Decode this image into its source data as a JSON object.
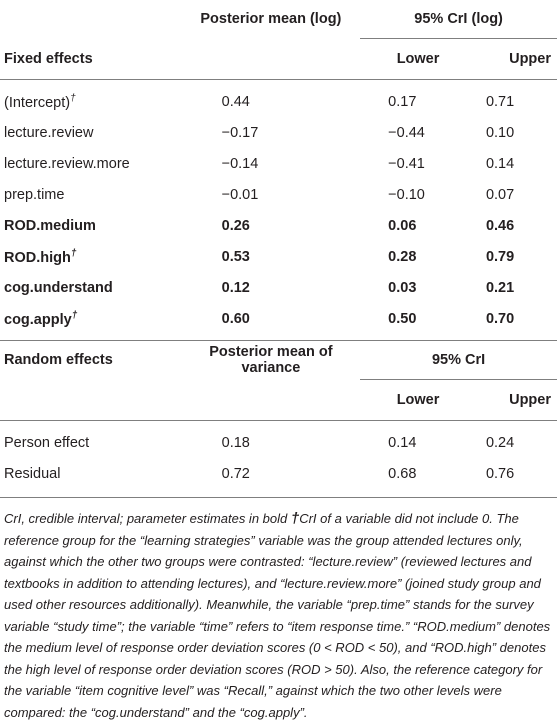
{
  "header": {
    "col_mean": "Posterior mean (log)",
    "col_cri": "95% CrI (log)",
    "section_fixed": "Fixed effects",
    "lower": "Lower",
    "upper": "Upper"
  },
  "fixed_rows": [
    {
      "name": "(Intercept)",
      "dagger": true,
      "mean": "0.44",
      "lower": "0.17",
      "upper": "0.71",
      "bold": false
    },
    {
      "name": "lecture.review",
      "dagger": false,
      "mean": "−0.17",
      "lower": "−0.44",
      "upper": "0.10",
      "bold": false
    },
    {
      "name": "lecture.review.more",
      "dagger": false,
      "mean": "−0.14",
      "lower": "−0.41",
      "upper": "0.14",
      "bold": false
    },
    {
      "name": "prep.time",
      "dagger": false,
      "mean": "−0.01",
      "lower": "−0.10",
      "upper": "0.07",
      "bold": false
    },
    {
      "name": "ROD.medium",
      "dagger": false,
      "mean": "0.26",
      "lower": "0.06",
      "upper": "0.46",
      "bold": true
    },
    {
      "name": "ROD.high",
      "dagger": true,
      "mean": "0.53",
      "lower": "0.28",
      "upper": "0.79",
      "bold": true
    },
    {
      "name": "cog.understand",
      "dagger": false,
      "mean": "0.12",
      "lower": "0.03",
      "upper": "0.21",
      "bold": true
    },
    {
      "name": "cog.apply",
      "dagger": true,
      "mean": "0.60",
      "lower": "0.50",
      "upper": "0.70",
      "bold": true
    }
  ],
  "random_header": {
    "section": "Random effects",
    "col_mean": "Posterior mean of variance",
    "col_cri": "95% CrI",
    "lower": "Lower",
    "upper": "Upper"
  },
  "random_rows": [
    {
      "name": "Person effect",
      "mean": "0.18",
      "lower": "0.14",
      "upper": "0.24"
    },
    {
      "name": "Residual",
      "mean": "0.72",
      "lower": "0.68",
      "upper": "0.76"
    }
  ],
  "dagger_symbol": "†",
  "footnote": {
    "part1": "CrI, credible interval; parameter estimates in bold ",
    "dagger": "†",
    "part2": "CrI of a variable did not include 0. The reference group for the “learning strategies” variable was the group attended lectures only, against which the other two groups were contrasted: “lecture.review” (reviewed lectures and textbooks in addition to attending lectures), and “lecture.review.more” (joined study group and used other resources additionally). Meanwhile, the variable “prep.time” stands for the survey variable “study time”; the variable “time” refers to “item response time.” “ROD.medium” denotes the medium level of response order deviation scores (0 < ROD < 50), and “ROD.high” denotes the high level of response order deviation scores (ROD > 50). Also, the reference category for the variable “item cognitive level” was “Recall,” against which the two other levels were compared: the “cog.understand” and the “cog.apply”."
  }
}
